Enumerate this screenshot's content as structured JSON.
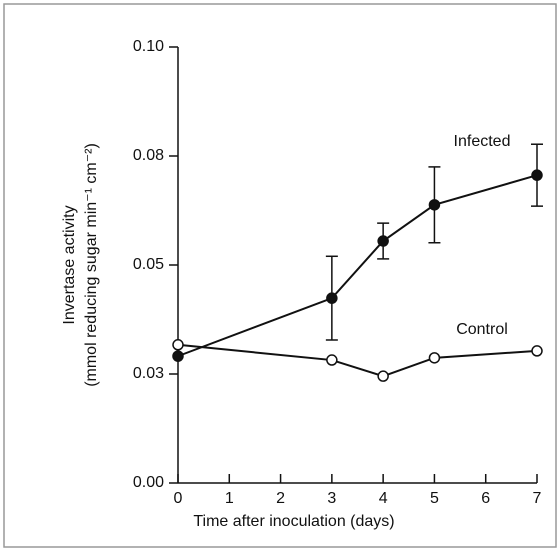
{
  "chart_data": {
    "type": "line",
    "ylabel": [
      "Invertase activity",
      "(mmol reducing sugar min⁻¹ cm⁻²)"
    ],
    "xlabel": "Time after inoculation (days)",
    "x": [
      0,
      3,
      4,
      5,
      7
    ],
    "xlim": [
      0,
      7
    ],
    "xticks": [
      0,
      1,
      2,
      3,
      4,
      5,
      6,
      7
    ],
    "ylim": [
      0,
      0.1
    ],
    "yticks": [
      {
        "value": 0,
        "label": "0.00"
      },
      {
        "value": 0.025,
        "label": "0.03"
      },
      {
        "value": 0.05,
        "label": "0.05"
      },
      {
        "value": 0.075,
        "label": "0.08"
      },
      {
        "value": 0.1,
        "label": "0.10"
      }
    ],
    "series": [
      {
        "name": "Infected",
        "color": "#111111",
        "marker_fill": "#111111",
        "values": [
          0.0291,
          0.0424,
          0.0555,
          0.0638,
          0.0706
        ],
        "errors": [
          null,
          0.0096,
          0.0041,
          0.0087,
          0.0071
        ]
      },
      {
        "name": "Control",
        "color": "#111111",
        "marker_fill": "#ffffff",
        "values": [
          0.0317,
          0.0282,
          0.0245,
          0.0287,
          0.0303
        ]
      }
    ]
  }
}
